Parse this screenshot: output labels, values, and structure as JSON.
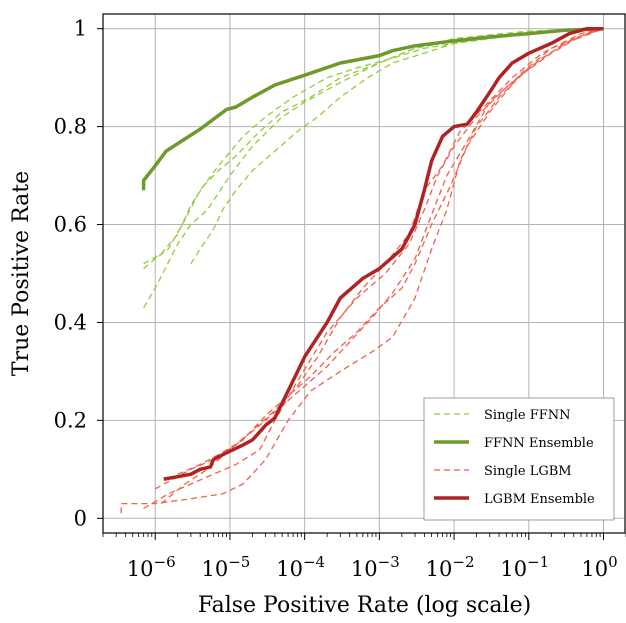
{
  "chart_data": {
    "type": "line",
    "xlabel": "False Positive Rate (log scale)",
    "ylabel": "True Positive Rate",
    "xscale": "log",
    "xlim": [
      2e-07,
      2
    ],
    "ylim": [
      -0.03,
      1.03
    ],
    "grid": true,
    "legend_placement": "bottom-right",
    "x_ticks": [
      {
        "value": 1e-06,
        "base": "10",
        "exp": "−6"
      },
      {
        "value": 1e-05,
        "base": "10",
        "exp": "−5"
      },
      {
        "value": 0.0001,
        "base": "10",
        "exp": "−4"
      },
      {
        "value": 0.001,
        "base": "10",
        "exp": "−3"
      },
      {
        "value": 0.01,
        "base": "10",
        "exp": "−2"
      },
      {
        "value": 0.1,
        "base": "10",
        "exp": "−1"
      },
      {
        "value": 1,
        "base": "10",
        "exp": "0"
      }
    ],
    "y_ticks": [
      {
        "value": 0,
        "label": "0"
      },
      {
        "value": 0.2,
        "label": "0.2"
      },
      {
        "value": 0.4,
        "label": "0.4"
      },
      {
        "value": 0.6,
        "label": "0.6"
      },
      {
        "value": 0.8,
        "label": "0.8"
      },
      {
        "value": 1,
        "label": "1"
      }
    ],
    "legend": [
      {
        "label": "Single FFNN",
        "color": "#8fcd3c",
        "dashed": true,
        "width": 1.3
      },
      {
        "label": "FFNN Ensemble",
        "color": "#6e9a2c",
        "dashed": false,
        "width": 3.5
      },
      {
        "label": "Single LGBM",
        "color": "#f2604a",
        "dashed": true,
        "width": 1.3
      },
      {
        "label": "LGBM Ensemble",
        "color": "#b02325",
        "dashed": false,
        "width": 3.5
      }
    ],
    "series": [
      {
        "group": "Single FFNN",
        "color": "#8fcd3c",
        "dashed": true,
        "width": 1.3,
        "points": [
          [
            7e-07,
            0.43
          ],
          [
            1e-06,
            0.47
          ],
          [
            2e-06,
            0.56
          ],
          [
            3e-06,
            0.6
          ],
          [
            5e-06,
            0.63
          ],
          [
            1e-05,
            0.7
          ],
          [
            2e-05,
            0.76
          ],
          [
            5e-05,
            0.82
          ],
          [
            0.0001,
            0.85
          ],
          [
            0.0003,
            0.89
          ],
          [
            0.001,
            0.93
          ],
          [
            0.003,
            0.96
          ],
          [
            0.01,
            0.975
          ],
          [
            0.03,
            0.985
          ],
          [
            0.1,
            0.99
          ],
          [
            0.3,
            0.995
          ],
          [
            1,
            1
          ]
        ]
      },
      {
        "group": "Single FFNN",
        "color": "#8fcd3c",
        "dashed": true,
        "width": 1.3,
        "points": [
          [
            7e-07,
            0.51
          ],
          [
            1e-06,
            0.53
          ],
          [
            1.5e-06,
            0.55
          ],
          [
            2.5e-06,
            0.61
          ],
          [
            4e-06,
            0.67
          ],
          [
            7e-06,
            0.72
          ],
          [
            1.5e-05,
            0.78
          ],
          [
            3e-05,
            0.82
          ],
          [
            7e-05,
            0.86
          ],
          [
            0.0002,
            0.9
          ],
          [
            0.0005,
            0.92
          ],
          [
            0.0015,
            0.94
          ],
          [
            0.004,
            0.96
          ],
          [
            0.01,
            0.97
          ],
          [
            0.03,
            0.98
          ],
          [
            0.1,
            0.99
          ],
          [
            1,
            1
          ]
        ]
      },
      {
        "group": "Single FFNN",
        "color": "#8fcd3c",
        "dashed": true,
        "width": 1.3,
        "points": [
          [
            7e-07,
            0.52
          ],
          [
            1.2e-06,
            0.54
          ],
          [
            2e-06,
            0.58
          ],
          [
            3e-06,
            0.64
          ],
          [
            4.5e-06,
            0.68
          ],
          [
            7e-06,
            0.71
          ],
          [
            1.2e-05,
            0.74
          ],
          [
            2.5e-05,
            0.79
          ],
          [
            5e-05,
            0.83
          ],
          [
            0.00012,
            0.86
          ],
          [
            0.0003,
            0.9
          ],
          [
            0.001,
            0.93
          ],
          [
            0.003,
            0.96
          ],
          [
            0.01,
            0.98
          ],
          [
            0.1,
            0.995
          ],
          [
            1,
            1
          ]
        ]
      },
      {
        "group": "Single FFNN",
        "color": "#8fcd3c",
        "dashed": true,
        "width": 1.3,
        "points": [
          [
            3e-06,
            0.52
          ],
          [
            4e-06,
            0.55
          ],
          [
            6e-06,
            0.59
          ],
          [
            8e-06,
            0.63
          ],
          [
            1.2e-05,
            0.67
          ],
          [
            2e-05,
            0.71
          ],
          [
            4e-05,
            0.75
          ],
          [
            8e-05,
            0.79
          ],
          [
            0.00015,
            0.82
          ],
          [
            0.0003,
            0.86
          ],
          [
            0.0007,
            0.9
          ],
          [
            0.0015,
            0.93
          ],
          [
            0.004,
            0.95
          ],
          [
            0.01,
            0.97
          ],
          [
            0.03,
            0.98
          ],
          [
            0.1,
            0.99
          ],
          [
            1,
            1
          ]
        ]
      },
      {
        "group": "FFNN Ensemble",
        "color": "#6e9a2c",
        "dashed": false,
        "width": 3.5,
        "points": [
          [
            7e-07,
            0.67
          ],
          [
            7e-07,
            0.69
          ],
          [
            1e-06,
            0.72
          ],
          [
            1.4e-06,
            0.75
          ],
          [
            2.5e-06,
            0.775
          ],
          [
            4e-06,
            0.795
          ],
          [
            6e-06,
            0.815
          ],
          [
            9e-06,
            0.835
          ],
          [
            1.2e-05,
            0.84
          ],
          [
            2e-05,
            0.86
          ],
          [
            4e-05,
            0.885
          ],
          [
            0.0001,
            0.905
          ],
          [
            0.0003,
            0.93
          ],
          [
            0.001,
            0.945
          ],
          [
            0.0015,
            0.955
          ],
          [
            0.003,
            0.965
          ],
          [
            0.01,
            0.975
          ],
          [
            0.03,
            0.983
          ],
          [
            0.1,
            0.99
          ],
          [
            0.3,
            0.997
          ],
          [
            1,
            1
          ]
        ]
      },
      {
        "group": "Single LGBM",
        "color": "#f2604a",
        "dashed": true,
        "width": 1.3,
        "points": [
          [
            3.5e-07,
            0.01
          ],
          [
            3.5e-07,
            0.03
          ],
          [
            1e-06,
            0.03
          ],
          [
            3e-06,
            0.04
          ],
          [
            8e-06,
            0.05
          ],
          [
            1.5e-05,
            0.07
          ],
          [
            3e-05,
            0.12
          ],
          [
            6e-05,
            0.2
          ],
          [
            0.00012,
            0.26
          ],
          [
            0.0003,
            0.3
          ],
          [
            0.0008,
            0.34
          ],
          [
            0.0015,
            0.37
          ],
          [
            0.003,
            0.45
          ],
          [
            0.005,
            0.55
          ],
          [
            0.008,
            0.63
          ],
          [
            0.012,
            0.73
          ],
          [
            0.02,
            0.8
          ],
          [
            0.04,
            0.86
          ],
          [
            0.1,
            0.92
          ],
          [
            0.3,
            0.97
          ],
          [
            1,
            1
          ]
        ]
      },
      {
        "group": "Single LGBM",
        "color": "#f2604a",
        "dashed": true,
        "width": 1.3,
        "points": [
          [
            7e-07,
            0.02
          ],
          [
            1.5e-06,
            0.05
          ],
          [
            3e-06,
            0.07
          ],
          [
            6e-06,
            0.09
          ],
          [
            1.2e-05,
            0.11
          ],
          [
            2.5e-05,
            0.14
          ],
          [
            4e-05,
            0.2
          ],
          [
            8e-05,
            0.28
          ],
          [
            0.0002,
            0.38
          ],
          [
            0.0005,
            0.45
          ],
          [
            0.0012,
            0.5
          ],
          [
            0.0025,
            0.56
          ],
          [
            0.004,
            0.63
          ],
          [
            0.006,
            0.7
          ],
          [
            0.01,
            0.76
          ],
          [
            0.02,
            0.82
          ],
          [
            0.05,
            0.88
          ],
          [
            0.15,
            0.94
          ],
          [
            0.4,
            0.98
          ],
          [
            1,
            1
          ]
        ]
      },
      {
        "group": "Single LGBM",
        "color": "#f2604a",
        "dashed": true,
        "width": 1.3,
        "points": [
          [
            1.2e-06,
            0.03
          ],
          [
            2.5e-06,
            0.07
          ],
          [
            5e-06,
            0.1
          ],
          [
            1e-05,
            0.14
          ],
          [
            2e-05,
            0.18
          ],
          [
            4e-05,
            0.22
          ],
          [
            8e-05,
            0.27
          ],
          [
            0.00015,
            0.33
          ],
          [
            0.0003,
            0.41
          ],
          [
            0.0006,
            0.47
          ],
          [
            0.0012,
            0.52
          ],
          [
            0.0025,
            0.58
          ],
          [
            0.004,
            0.67
          ],
          [
            0.007,
            0.72
          ],
          [
            0.012,
            0.79
          ],
          [
            0.025,
            0.84
          ],
          [
            0.06,
            0.9
          ],
          [
            0.15,
            0.95
          ],
          [
            0.5,
            0.99
          ],
          [
            1,
            1
          ]
        ]
      },
      {
        "group": "Single LGBM",
        "color": "#f2604a",
        "dashed": true,
        "width": 1.3,
        "points": [
          [
            2e-06,
            0.09
          ],
          [
            4e-06,
            0.11
          ],
          [
            7e-06,
            0.13
          ],
          [
            1.5e-05,
            0.16
          ],
          [
            3e-05,
            0.21
          ],
          [
            6e-05,
            0.25
          ],
          [
            0.00012,
            0.29
          ],
          [
            0.00025,
            0.34
          ],
          [
            0.0005,
            0.38
          ],
          [
            0.001,
            0.43
          ],
          [
            0.002,
            0.47
          ],
          [
            0.003,
            0.52
          ],
          [
            0.005,
            0.6
          ],
          [
            0.009,
            0.68
          ],
          [
            0.015,
            0.76
          ],
          [
            0.03,
            0.83
          ],
          [
            0.08,
            0.91
          ],
          [
            0.2,
            0.96
          ],
          [
            0.6,
            0.99
          ],
          [
            1,
            1
          ]
        ]
      },
      {
        "group": "Single LGBM",
        "color": "#f2604a",
        "dashed": true,
        "width": 1.3,
        "points": [
          [
            1e-06,
            0.06
          ],
          [
            3e-06,
            0.1
          ],
          [
            6e-06,
            0.12
          ],
          [
            1.2e-05,
            0.15
          ],
          [
            2.5e-05,
            0.19
          ],
          [
            5e-05,
            0.23
          ],
          [
            0.0001,
            0.27
          ],
          [
            0.0002,
            0.31
          ],
          [
            0.0004,
            0.36
          ],
          [
            0.0008,
            0.41
          ],
          [
            0.0015,
            0.46
          ],
          [
            0.003,
            0.53
          ],
          [
            0.005,
            0.62
          ],
          [
            0.008,
            0.7
          ],
          [
            0.015,
            0.77
          ],
          [
            0.03,
            0.85
          ],
          [
            0.07,
            0.9
          ],
          [
            0.2,
            0.95
          ],
          [
            0.5,
            0.985
          ],
          [
            1,
            1
          ]
        ]
      },
      {
        "group": "LGBM Ensemble",
        "color": "#b02325",
        "dashed": false,
        "width": 3.5,
        "points": [
          [
            1.3e-06,
            0.08
          ],
          [
            2e-06,
            0.085
          ],
          [
            3e-06,
            0.09
          ],
          [
            4e-06,
            0.1
          ],
          [
            5.5e-06,
            0.105
          ],
          [
            6e-06,
            0.12
          ],
          [
            8e-06,
            0.13
          ],
          [
            1.5e-05,
            0.15
          ],
          [
            2e-05,
            0.16
          ],
          [
            3e-05,
            0.19
          ],
          [
            4e-05,
            0.205
          ],
          [
            6e-05,
            0.26
          ],
          [
            0.0001,
            0.33
          ],
          [
            0.0002,
            0.4
          ],
          [
            0.0003,
            0.45
          ],
          [
            0.0006,
            0.49
          ],
          [
            0.001,
            0.51
          ],
          [
            0.002,
            0.55
          ],
          [
            0.003,
            0.6
          ],
          [
            0.004,
            0.67
          ],
          [
            0.005,
            0.73
          ],
          [
            0.007,
            0.78
          ],
          [
            0.01,
            0.8
          ],
          [
            0.015,
            0.805
          ],
          [
            0.02,
            0.83
          ],
          [
            0.03,
            0.87
          ],
          [
            0.04,
            0.9
          ],
          [
            0.06,
            0.93
          ],
          [
            0.1,
            0.95
          ],
          [
            0.2,
            0.97
          ],
          [
            0.35,
            0.99
          ],
          [
            0.6,
            1
          ],
          [
            1,
            1
          ]
        ]
      }
    ]
  }
}
